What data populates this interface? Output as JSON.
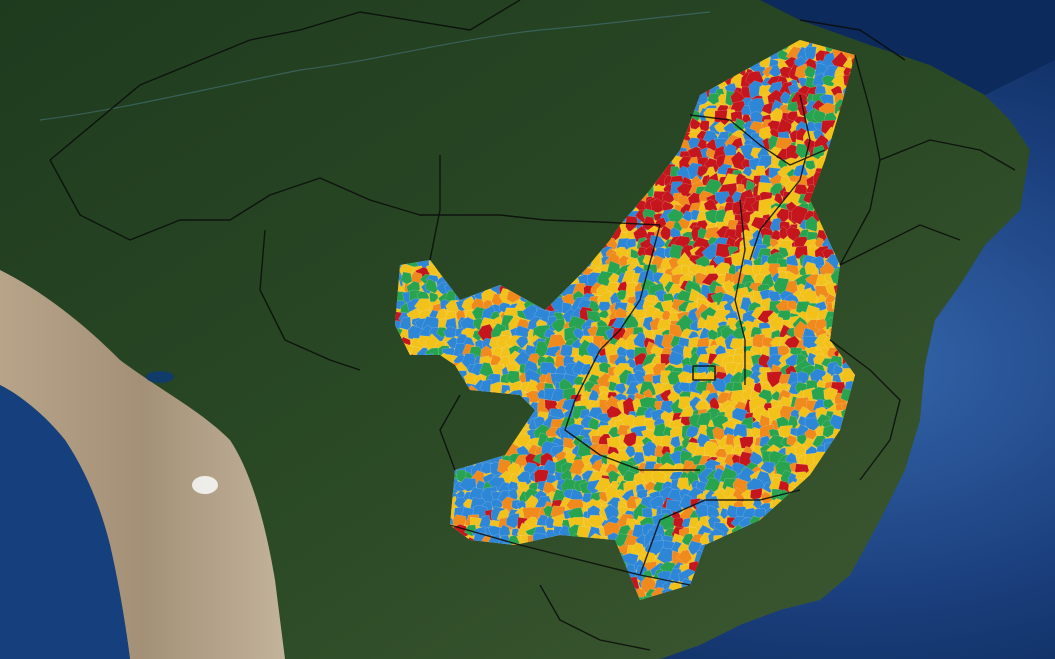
{
  "map": {
    "view": "satellite",
    "layer": "choropleth-municipalities",
    "colors": {
      "ocean_deep": "#0b2a5c",
      "ocean_mid": "#1f4d8f",
      "ocean_shelf": "#3f73b5",
      "forest_dark": "#1f3b1e",
      "forest": "#2a4a25",
      "savanna": "#4a5e34",
      "andes_light": "#b9a88f",
      "andes_mid": "#9a8870",
      "salt_flat": "#f3f3f1",
      "lake": "#113c6a",
      "borders": "#0b0b0b",
      "class_blue": "#2e86d6",
      "class_green": "#28a34f",
      "class_yellow": "#f2c21b",
      "class_orange": "#f08a1c",
      "class_red": "#c4161c"
    },
    "classes": [
      "blue",
      "green",
      "yellow",
      "orange",
      "red"
    ]
  }
}
